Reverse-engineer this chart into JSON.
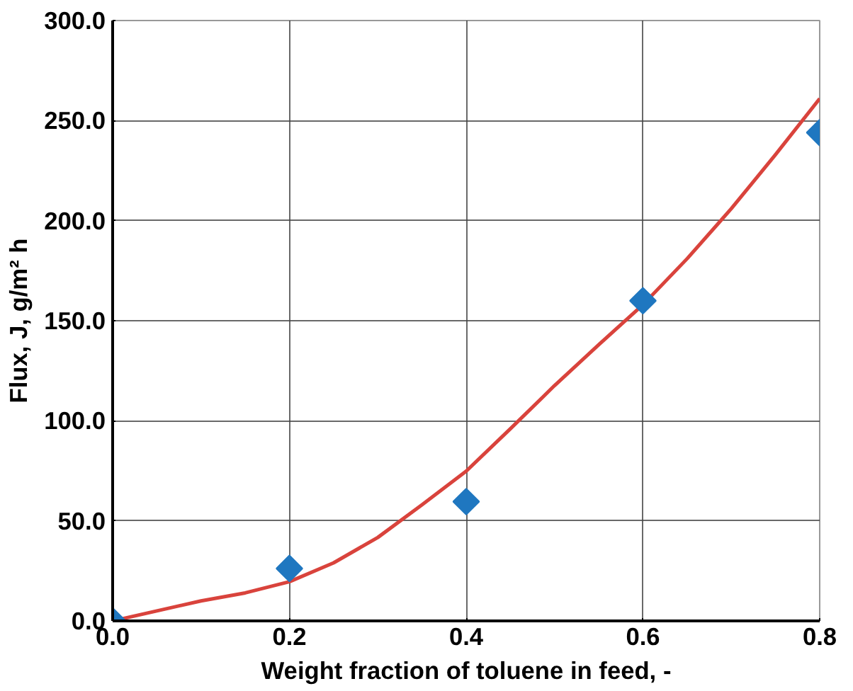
{
  "chart_data": {
    "type": "scatter",
    "xlabel": "Weight fraction of toluene in feed, -",
    "ylabel": "Flux, J, g/m² h",
    "xlim": [
      0,
      0.8
    ],
    "ylim": [
      0,
      300
    ],
    "xticks": [
      {
        "value": 0,
        "label": "0.0"
      },
      0.2,
      0.4,
      0.6,
      0.8
    ],
    "yticks": [
      {
        "value": 0,
        "label": "0.0"
      },
      {
        "value": 50,
        "label": "50.0"
      },
      {
        "value": 100,
        "label": "100.0"
      },
      {
        "value": 150,
        "label": "150.0"
      },
      {
        "value": 200,
        "label": "200.0"
      },
      {
        "value": 250,
        "label": "250.0"
      },
      {
        "value": 300,
        "label": "300.0"
      }
    ],
    "grid": true,
    "series": [
      {
        "type": "line",
        "color": "#d9433c",
        "marker": "none",
        "line_style": "solid",
        "x": [
          0,
          0.05,
          0.1,
          0.15,
          0.2,
          0.25,
          0.3,
          0.35,
          0.4,
          0.45,
          0.5,
          0.55,
          0.6,
          0.65,
          0.7,
          0.75,
          0.8
        ],
        "values": [
          0,
          5,
          10,
          14,
          19.6,
          29,
          41.7,
          58,
          74.8,
          96,
          117.6,
          138,
          158,
          181,
          206,
          233,
          261
        ]
      },
      {
        "color": "#1f77c0",
        "marker": "diamond",
        "x": [
          0,
          0.2,
          0.4,
          0.6,
          0.8
        ],
        "values": [
          0,
          26.2,
          59.6,
          160,
          244
        ]
      }
    ]
  }
}
